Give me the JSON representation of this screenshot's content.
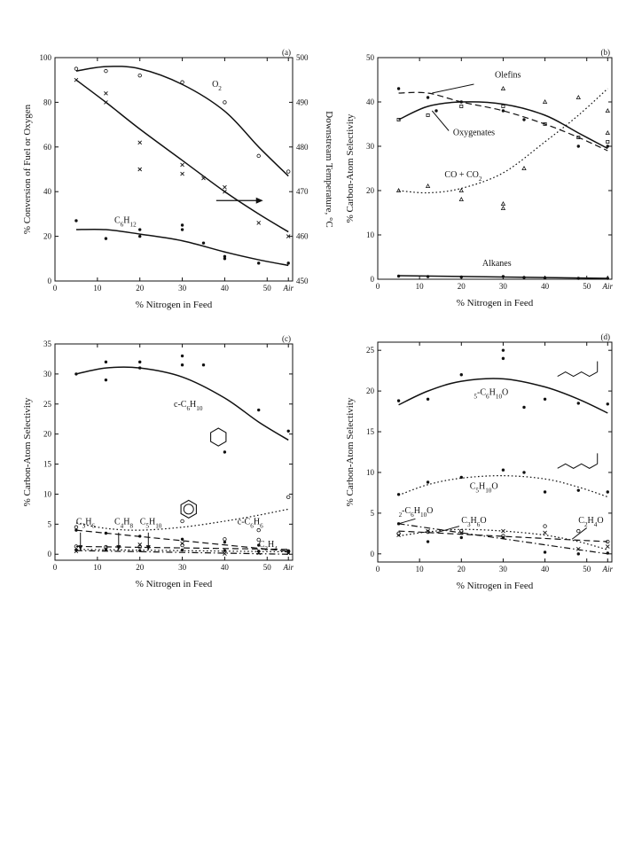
{
  "chart_data": [
    {
      "panel": "(a)",
      "type": "scatter",
      "xlabel": "% Nitrogen in Feed",
      "ylabel": "% Conversion of Fuel or Oxygen",
      "y2label": "Downstream Temperature, °C",
      "xlim": [
        0,
        56
      ],
      "ylim": [
        0,
        100
      ],
      "y2lim": [
        450,
        500
      ],
      "xticks": [
        "0",
        "10",
        "20",
        "30",
        "40",
        "50",
        "Air"
      ],
      "yticks": [
        "0",
        "20",
        "40",
        "60",
        "80",
        "100"
      ],
      "y2ticks": [
        "450",
        "460",
        "470",
        "480",
        "490",
        "500"
      ],
      "series": [
        {
          "name": "O2",
          "label": "O2",
          "marker": "circle",
          "x": [
            5,
            12,
            20,
            30,
            40,
            48,
            55
          ],
          "y": [
            95,
            94,
            92,
            89,
            80,
            56,
            49
          ],
          "curve": {
            "x": [
              5,
              12,
              20,
              30,
              40,
              48,
              55
            ],
            "y": [
              94,
              96,
              95,
              88,
              76,
              60,
              47
            ]
          }
        },
        {
          "name": "Temperature",
          "marker": "cross",
          "axis": "right",
          "x": [
            5,
            12,
            12,
            20,
            20,
            30,
            30,
            35,
            40,
            40,
            48,
            55
          ],
          "y": [
            495,
            492,
            490,
            481,
            475,
            476,
            474,
            473,
            471,
            470,
            463,
            460
          ],
          "curve": {
            "x": [
              5,
              12,
              20,
              30,
              40,
              48,
              55
            ],
            "y": [
              495,
              490,
              484,
              477,
              470,
              465,
              461
            ]
          }
        },
        {
          "name": "C6H12",
          "label": "C6H12",
          "marker": "dot",
          "x": [
            5,
            12,
            20,
            20,
            30,
            30,
            35,
            40,
            40,
            48,
            55
          ],
          "y": [
            27,
            19,
            23,
            20,
            25,
            23,
            17,
            11,
            10,
            8,
            8
          ],
          "curve": {
            "x": [
              5,
              12,
              20,
              30,
              40,
              48,
              55
            ],
            "y": [
              23,
              23,
              21,
              18,
              13,
              9.5,
              7
            ]
          }
        }
      ]
    },
    {
      "panel": "(b)",
      "type": "scatter",
      "xlabel": "% Nitrogen in Feed",
      "ylabel": "% Carbon-Atom Selectivity",
      "xlim": [
        0,
        56
      ],
      "ylim": [
        0,
        50
      ],
      "xticks": [
        "0",
        "10",
        "20",
        "30",
        "40",
        "50",
        "Air"
      ],
      "yticks": [
        "0",
        "10",
        "20",
        "30",
        "40",
        "50"
      ],
      "series": [
        {
          "name": "Olefins",
          "label": "Olefins",
          "marker": "dot",
          "line": "dashed",
          "x": [
            5,
            12,
            14,
            20,
            30,
            35,
            48,
            55
          ],
          "y": [
            43,
            41,
            38,
            40,
            38,
            36,
            30,
            30
          ],
          "curve": {
            "x": [
              5,
              12,
              20,
              30,
              40,
              48,
              55
            ],
            "y": [
              42,
              42,
              40,
              38,
              35,
              32,
              29
            ]
          }
        },
        {
          "name": "Oxygenates",
          "label": "Oxygenates",
          "marker": "square",
          "x": [
            5,
            12,
            20,
            30,
            40,
            48,
            55
          ],
          "y": [
            36,
            37,
            39,
            39,
            35,
            32,
            31
          ],
          "curve": {
            "x": [
              5,
              12,
              20,
              30,
              40,
              48,
              55
            ],
            "y": [
              36,
              39,
              40,
              39.5,
              37,
              33,
              29.5
            ]
          }
        },
        {
          "name": "CO + CO2",
          "label": "CO + CO2",
          "marker": "triangle",
          "line": "dotted",
          "x": [
            5,
            12,
            20,
            20,
            30,
            30,
            30,
            35,
            40,
            48,
            55,
            55
          ],
          "y": [
            20,
            21,
            18,
            20,
            43,
            17,
            16,
            25,
            40,
            41,
            38,
            33
          ],
          "curve": {
            "x": [
              5,
              12,
              20,
              30,
              40,
              48,
              55
            ],
            "y": [
              20,
              19.5,
              20.5,
              24,
              31,
              37,
              43
            ]
          }
        },
        {
          "name": "Alkanes",
          "label": "Alkanes",
          "marker": "dot",
          "x": [
            5,
            12,
            20,
            30,
            35,
            40,
            48,
            55
          ],
          "y": [
            0.7,
            0.6,
            0.5,
            0.6,
            0.4,
            0.3,
            0.2,
            0.2
          ],
          "curve": {
            "x": [
              5,
              55
            ],
            "y": [
              0.8,
              0.2
            ]
          }
        }
      ]
    },
    {
      "panel": "(c)",
      "type": "scatter",
      "xlabel": "% Nitrogen in Feed",
      "ylabel": "% Carbon-Atom Selectivity",
      "xlim": [
        0,
        56
      ],
      "ylim": [
        -1,
        35
      ],
      "xticks": [
        "0",
        "10",
        "20",
        "30",
        "40",
        "50",
        "Air"
      ],
      "yticks": [
        "0",
        "5",
        "10",
        "15",
        "20",
        "25",
        "30",
        "35"
      ],
      "series": [
        {
          "name": "c-C6H10",
          "label": "c-C6H10",
          "marker": "dot",
          "x": [
            5,
            12,
            12,
            20,
            20,
            30,
            30,
            35,
            40,
            48,
            55
          ],
          "y": [
            30,
            32,
            29,
            32,
            31,
            33,
            31.5,
            31.5,
            17,
            24,
            20.5
          ],
          "curve": {
            "x": [
              5,
              12,
              20,
              30,
              40,
              48,
              55
            ],
            "y": [
              30,
              31,
              31,
              29.5,
              26,
              22,
              19
            ]
          }
        },
        {
          "name": "c-C6H6",
          "label": "c-C6H6",
          "marker": "circle",
          "line": "dotted",
          "x": [
            5,
            30,
            48,
            55
          ],
          "y": [
            4.5,
            5.5,
            4,
            9.5
          ],
          "curve": {
            "x": [
              5,
              12,
              20,
              30,
              40,
              48,
              55
            ],
            "y": [
              5.2,
              4.3,
              4,
              4.5,
              5.5,
              6.5,
              7.5
            ]
          }
        },
        {
          "name": "C3H6",
          "label": "C3H6",
          "marker": "dot",
          "line": "dashed",
          "x": [
            5,
            12,
            20,
            30,
            40,
            48,
            55
          ],
          "y": [
            4,
            3.5,
            3,
            2.5,
            2,
            1.5,
            0.5
          ],
          "curve": {
            "x": [
              5,
              55
            ],
            "y": [
              4,
              0.5
            ]
          }
        },
        {
          "name": "C4H8",
          "label": "C4H8",
          "marker": "circle",
          "line": "dashed",
          "x": [
            5,
            12,
            20,
            30,
            40,
            48,
            55
          ],
          "y": [
            1.3,
            1.2,
            1.2,
            1.5,
            2.5,
            2.4,
            0.5
          ],
          "curve": {
            "x": [
              5,
              55
            ],
            "y": [
              1.3,
              0.8
            ]
          }
        },
        {
          "name": "C5H10",
          "label": "C5H10",
          "marker": "dot",
          "line": "dotted",
          "x": [
            5,
            12,
            20,
            30,
            40,
            48,
            55
          ],
          "y": [
            0.7,
            0.8,
            0.6,
            0.7,
            0.6,
            0.5,
            0.3
          ],
          "curve": {
            "x": [
              5,
              55
            ],
            "y": [
              0.8,
              0.4
            ]
          }
        },
        {
          "name": "C2H4",
          "label": "C2H4",
          "marker": "cross",
          "line": "dash-dot",
          "x": [
            5,
            12,
            20,
            30,
            40,
            48,
            55
          ],
          "y": [
            0.5,
            0.8,
            1.6,
            1.8,
            0.1,
            0.2,
            0.2
          ],
          "curve": {
            "x": [
              5,
              55
            ],
            "y": [
              0.6,
              0
            ]
          }
        }
      ]
    },
    {
      "panel": "(d)",
      "type": "scatter",
      "xlabel": "% Nitrogen in Feed",
      "ylabel": "% Carbon-Atom Selectivity",
      "xlim": [
        0,
        56
      ],
      "ylim": [
        -1,
        26
      ],
      "xticks": [
        "0",
        "10",
        "20",
        "30",
        "40",
        "50",
        "Air"
      ],
      "yticks": [
        "0",
        "5",
        "10",
        "15",
        "20",
        "25"
      ],
      "series": [
        {
          "name": "5-C6H10O",
          "label": "5-C6H10O",
          "marker": "dot",
          "x": [
            5,
            12,
            20,
            30,
            30,
            35,
            40,
            48,
            55
          ],
          "y": [
            18.8,
            19,
            22,
            25,
            24,
            18,
            19,
            18.5,
            18.4
          ],
          "curve": {
            "x": [
              5,
              12,
              20,
              30,
              40,
              48,
              55
            ],
            "y": [
              18.3,
              20,
              21.2,
              21.5,
              20.5,
              19,
              17.3
            ]
          }
        },
        {
          "name": "C5H10O",
          "label": "C5H10O",
          "marker": "dot",
          "line": "dotted",
          "x": [
            5,
            12,
            20,
            30,
            35,
            40,
            48,
            55
          ],
          "y": [
            7.3,
            8.8,
            9.4,
            10.3,
            10,
            7.6,
            7.8,
            7.6
          ],
          "curve": {
            "x": [
              5,
              12,
              20,
              30,
              40,
              48,
              55
            ],
            "y": [
              7.2,
              8.5,
              9.3,
              9.6,
              9.2,
              8.2,
              7
            ]
          }
        },
        {
          "name": "2-C6H10O",
          "label": "2-C6H10O",
          "marker": "dot",
          "line": "dash-dot",
          "x": [
            5,
            12,
            20,
            30,
            40,
            48,
            55
          ],
          "y": [
            3.7,
            1.5,
            2,
            2,
            0.2,
            0,
            0.1
          ],
          "curve": {
            "x": [
              5,
              55
            ],
            "y": [
              3.7,
              0
            ]
          }
        },
        {
          "name": "C3H6O",
          "label": "C3H6O",
          "marker": "circle",
          "line": "dashed",
          "x": [
            5,
            12,
            20,
            30,
            40,
            48,
            55
          ],
          "y": [
            2.5,
            2.7,
            2.8,
            2.2,
            3.4,
            2.8,
            1.5
          ],
          "curve": {
            "x": [
              5,
              55
            ],
            "y": [
              2.8,
              1.5
            ]
          }
        },
        {
          "name": "C2H4O",
          "label": "C2H4O",
          "marker": "cross",
          "line": "dotted",
          "x": [
            5,
            12,
            20,
            30,
            40,
            48,
            55
          ],
          "y": [
            2.3,
            2.8,
            2.6,
            2.8,
            2.6,
            0.6,
            0.9
          ],
          "curve": {
            "x": [
              5,
              12,
              20,
              30,
              40,
              48,
              55
            ],
            "y": [
              2.2,
              2.7,
              3,
              2.8,
              2.3,
              1.5,
              0.5
            ]
          }
        }
      ]
    }
  ]
}
